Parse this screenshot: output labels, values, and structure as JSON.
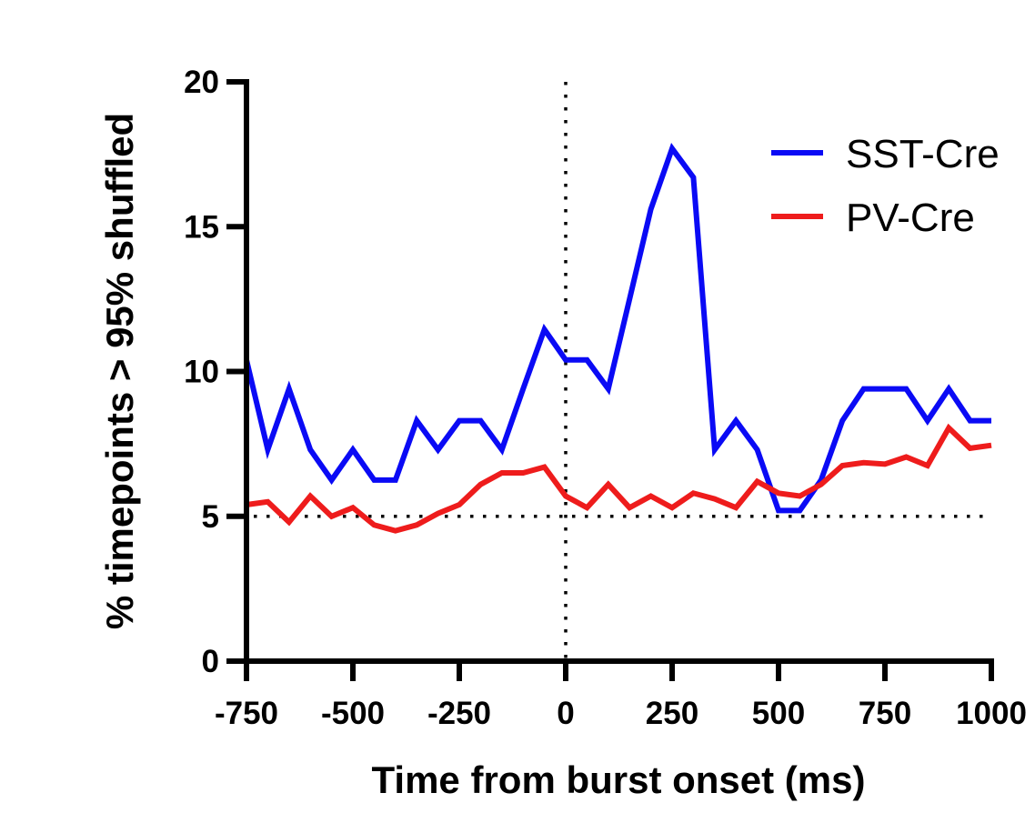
{
  "chart_data": {
    "type": "line",
    "title": "",
    "xlabel": "Time from burst onset (ms)",
    "ylabel": "% timepoints > 95% shuffled",
    "xlim": [
      -750,
      1000
    ],
    "ylim": [
      0,
      20
    ],
    "xticks": [
      -750,
      -500,
      -250,
      0,
      250,
      500,
      750,
      1000
    ],
    "xtick_labels": [
      "-750",
      "-500",
      "-250",
      "0",
      "250",
      "500",
      "750",
      "1000"
    ],
    "yticks": [
      0,
      5,
      10,
      15,
      20
    ],
    "ytick_labels": [
      "0",
      "5",
      "10",
      "15",
      "20"
    ],
    "grid": false,
    "legend_position": "top-right",
    "reference_lines": [
      {
        "orientation": "horizontal",
        "value": 5,
        "style": "dotted"
      },
      {
        "orientation": "vertical",
        "value": 0,
        "style": "dotted"
      }
    ],
    "x": [
      -750,
      -700,
      -650,
      -600,
      -550,
      -500,
      -450,
      -400,
      -350,
      -300,
      -250,
      -200,
      -150,
      -100,
      -50,
      0,
      50,
      100,
      150,
      200,
      250,
      300,
      350,
      400,
      450,
      500,
      550,
      600,
      650,
      700,
      750,
      800,
      850,
      900,
      950,
      1000
    ],
    "series": [
      {
        "name": "SST-Cre",
        "color": "#0a0af5",
        "values": [
          10.4,
          7.3,
          9.4,
          7.3,
          6.25,
          7.3,
          6.25,
          6.25,
          8.3,
          7.3,
          8.3,
          8.3,
          7.3,
          9.4,
          11.45,
          10.4,
          10.4,
          9.4,
          12.5,
          15.6,
          17.7,
          16.7,
          7.3,
          8.3,
          7.3,
          5.2,
          5.2,
          6.25,
          8.3,
          9.4,
          9.4,
          9.4,
          8.3,
          9.4,
          8.3,
          8.3
        ]
      },
      {
        "name": "PV-Cre",
        "color": "#ee1c1c",
        "values": [
          5.4,
          5.5,
          4.8,
          5.7,
          5.0,
          5.3,
          4.7,
          4.5,
          4.7,
          5.1,
          5.4,
          6.1,
          6.5,
          6.5,
          6.7,
          5.7,
          5.3,
          6.1,
          5.3,
          5.7,
          5.3,
          5.8,
          5.6,
          5.3,
          6.2,
          5.8,
          5.7,
          6.1,
          6.75,
          6.85,
          6.8,
          7.05,
          6.75,
          8.05,
          7.35,
          7.45
        ]
      }
    ]
  }
}
